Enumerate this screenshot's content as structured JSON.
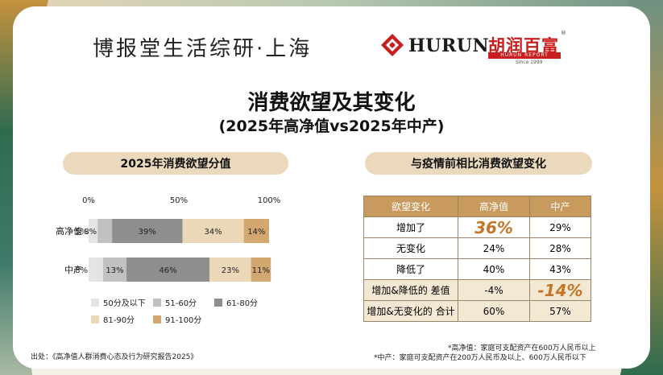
{
  "header": {
    "brand_title": "博报堂生活综研·上海",
    "logo_word": "HURUN",
    "logo_cn": "胡润百富",
    "logo_cn_sub": "HURUN REPORT",
    "logo_since": "Since 1999",
    "logo_reg": "®"
  },
  "title": "消费欲望及其变化",
  "subtitle": "(2025年高净值vs2025年中产)",
  "left_panel": {
    "title": "2025年消费欲望分值"
  },
  "right_panel": {
    "title": "与疫情前相比消费欲望变化"
  },
  "chart_data": {
    "type": "bar",
    "orientation": "horizontal-stacked-percent",
    "categories": [
      "高净值",
      "中产"
    ],
    "x_ticks": [
      "0%",
      "50%",
      "100%"
    ],
    "xlim": [
      0,
      100
    ],
    "series": [
      {
        "name": "50分及以下",
        "values": [
          5,
          8
        ],
        "labels": [
          "5%",
          "8%"
        ],
        "color": "#e4e4e4"
      },
      {
        "name": "51-60分",
        "values": [
          8,
          13
        ],
        "labels": [
          "8%",
          "13%"
        ],
        "color": "#c1c1c1"
      },
      {
        "name": "61-80分",
        "values": [
          39,
          46
        ],
        "labels": [
          "39%",
          "46%"
        ],
        "color": "#8e8e8e"
      },
      {
        "name": "81-90分",
        "values": [
          34,
          23
        ],
        "labels": [
          "34%",
          "23%"
        ],
        "color": "#ead8b8"
      },
      {
        "name": "91-100分",
        "values": [
          14,
          11
        ],
        "labels": [
          "14%",
          "11%"
        ],
        "color": "#d2a870"
      }
    ],
    "legend_position": "bottom"
  },
  "table": {
    "headers": [
      "欲望变化",
      "高净值",
      "中产"
    ],
    "rows": [
      {
        "label": "增加了",
        "hnw": "36%",
        "mid": "29%"
      },
      {
        "label": "无变化",
        "hnw": "24%",
        "mid": "28%"
      },
      {
        "label": "降低了",
        "hnw": "40%",
        "mid": "43%"
      },
      {
        "label": "增加&降低的 差值",
        "hnw": "-4%",
        "mid": "-14%"
      },
      {
        "label": "增加&无变化的 合计",
        "hnw": "60%",
        "mid": "57%"
      }
    ]
  },
  "notes": {
    "hnw": "*高净值：家庭可支配资产在600万人民币以上",
    "mid": "*中产：家庭可支配资产在200万人民币及以上、600万人民币以下"
  },
  "source": "出处：《高净值人群消费心态及行为研究报告2025》",
  "colors": {
    "pill": "#ead9bd",
    "table_header": "#c99a5e",
    "highlight": "#c47528",
    "deco_green": "#2f6b4f",
    "deco_gold": "#c99a5e"
  }
}
